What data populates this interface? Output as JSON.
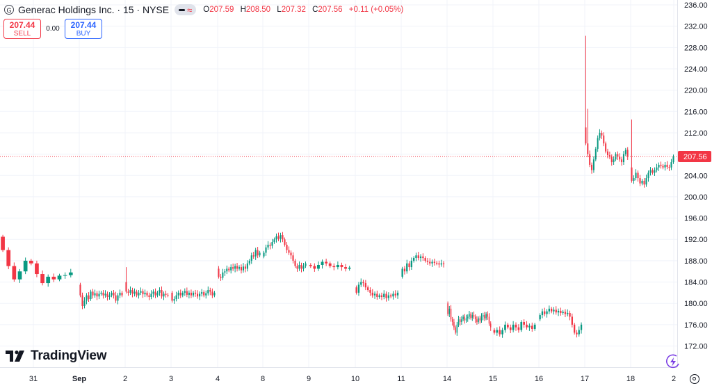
{
  "header": {
    "symbol_icon": "G",
    "title": "Generac Holdings Inc. · 15 · NYSE",
    "ohlc": [
      {
        "k": "O",
        "v": "207.59"
      },
      {
        "k": "H",
        "v": "208.50"
      },
      {
        "k": "L",
        "v": "207.32"
      },
      {
        "k": "C",
        "v": "207.56"
      }
    ],
    "change": "+0.11 (+0.05%)"
  },
  "trade": {
    "sell_price": "207.44",
    "sell_label": "SELL",
    "spread": "0.00",
    "buy_price": "207.44",
    "buy_label": "BUY"
  },
  "brand": {
    "name": "TradingView"
  },
  "colors": {
    "up": "#089981",
    "down": "#f23645",
    "grid": "#f0f3fa",
    "text": "#131722"
  },
  "icons": [
    "symbol-logo-icon",
    "indicator-toggle-icon",
    "tradingview-logo-icon",
    "settings-icon",
    "lightning-icon"
  ],
  "chart_data": {
    "type": "candlestick",
    "ylim": [
      170.2,
      237.8
    ],
    "y_ticks": [
      "236.00",
      "232.00",
      "228.00",
      "224.00",
      "220.00",
      "216.00",
      "212.00",
      "208.00",
      "204.00",
      "200.00",
      "196.00",
      "192.00",
      "188.00",
      "184.00",
      "180.00",
      "176.00",
      "172.00"
    ],
    "x_ticks": [
      "31",
      "Sep",
      "2",
      "3",
      "4",
      "8",
      "9",
      "10",
      "11",
      "14",
      "15",
      "16",
      "17",
      "18",
      "2"
    ],
    "last_price": "207.56",
    "grid": true,
    "sessions": [
      {
        "day": "30",
        "path": [
          192.5,
          190,
          187,
          184.5,
          186,
          188,
          187.5,
          185.5,
          183.8,
          185,
          184.5,
          185.2,
          185.3,
          185.8
        ]
      },
      {
        "day": "31",
        "path": [
          183.5,
          181.5,
          179.5,
          180.5,
          181.5,
          180.8,
          182.2,
          181.5,
          181.9,
          181.3,
          181.8,
          182,
          181.5,
          181.8,
          181.2,
          181.5,
          182,
          181.5,
          180.5,
          181.5,
          182,
          181.5
        ]
      },
      {
        "day": "2",
        "path": [
          184,
          182.2,
          182,
          182.5,
          181.8,
          182.2,
          181.5,
          182,
          182.3,
          181.7,
          182,
          181.5,
          181.2,
          181.8,
          182.2,
          181.5,
          182,
          182.5,
          181.3,
          181.8,
          181.6,
          181.5
        ]
      },
      {
        "day": "3",
        "path": [
          182,
          180.5,
          180.8,
          181.5,
          182,
          181.5,
          182,
          182.3,
          181.6,
          182,
          181.5,
          182,
          181.8,
          181.3,
          181.8,
          182.1,
          181.5,
          181.9,
          182.5,
          182.2,
          181.5,
          182
        ]
      },
      {
        "day": "4",
        "path": [
          186.5,
          185,
          184.8,
          185.8,
          186,
          186.5,
          186.2,
          186.8,
          186.5,
          187,
          186.5,
          186.8,
          186.2,
          186.9,
          186.5,
          187.5,
          188,
          189,
          188.8,
          190,
          189,
          189.5
        ]
      },
      {
        "day": "8",
        "path": [
          188.8,
          189.5,
          190.5,
          191,
          190.8,
          191.5,
          192,
          192.6,
          192.1,
          192.8,
          192,
          191,
          190,
          189.5,
          189,
          188,
          187,
          186.5,
          187.2,
          186.5,
          187,
          187.5
        ]
      },
      {
        "day": "9",
        "path": [
          187.2,
          187,
          186.5,
          187.2,
          187.8,
          187.5,
          187,
          186.8,
          187.2,
          186.8,
          186.5,
          186.7
        ]
      },
      {
        "day": "10",
        "path": [
          183,
          182,
          183.5,
          184,
          183.8,
          183,
          182.5,
          182,
          181.5,
          181.8,
          181.2,
          181.5,
          181.2,
          181.8,
          181,
          181.5,
          181.3,
          181.8,
          181.5,
          182
        ]
      },
      {
        "day": "11",
        "path": [
          185,
          186.5,
          186,
          187.5,
          186.8,
          188,
          188.5,
          189,
          188.5,
          188.8,
          188.5,
          188,
          187.8,
          187.5,
          187.8,
          187.6,
          187.5,
          187.3,
          187.5,
          187.4
        ]
      },
      {
        "day": "14",
        "path": [
          180,
          178,
          179,
          177,
          176.5,
          175.5,
          174.5,
          176,
          177,
          176.5,
          177,
          177.5,
          176.8,
          177.2,
          177.5,
          178,
          177.3,
          177.8,
          177.5,
          177,
          176.5,
          177.2,
          176.8,
          177.5,
          177.8,
          177.2,
          178,
          177.5,
          176.2,
          175.5
        ]
      },
      {
        "day": "15",
        "path": [
          175,
          174.5,
          175,
          174.2,
          175,
          176,
          175.5,
          175,
          176,
          175.5,
          175,
          176.5,
          176,
          175.5,
          175.8,
          175.2,
          176
        ]
      },
      {
        "day": "16",
        "path": [
          177,
          177.8,
          178.5,
          178,
          178.5,
          179,
          178.5,
          178.8,
          178.3,
          178.6,
          178.2,
          178.4,
          178,
          178.2,
          177.5,
          176,
          174.5,
          174.2,
          175,
          176
        ]
      },
      {
        "day": "17",
        "path": [
          213,
          210,
          208,
          206,
          205,
          207,
          209,
          211,
          212,
          211.5,
          210,
          208.5,
          207.8,
          207.5,
          206.5,
          207,
          208,
          207.5,
          207,
          206.5,
          208,
          208.8,
          207.5
        ]
      },
      {
        "day": "18",
        "path": [
          205.5,
          203,
          203.5,
          204.5,
          203.5,
          202.5,
          203,
          202.3,
          203.5,
          204.5,
          205,
          204.5,
          205,
          205.5,
          206,
          205.8,
          205.5,
          206,
          205.6,
          205.5,
          206.5,
          207.56
        ]
      }
    ],
    "spikes": [
      {
        "day": "17",
        "bar": 0,
        "high": 230.2
      },
      {
        "day": "17",
        "bar": 1,
        "high": 216.5
      },
      {
        "day": "18",
        "bar": 0,
        "high": 214.5
      },
      {
        "day": "2",
        "bar": 0,
        "high": 186.8
      },
      {
        "day": "4",
        "bar": 0,
        "high": 187
      }
    ]
  }
}
